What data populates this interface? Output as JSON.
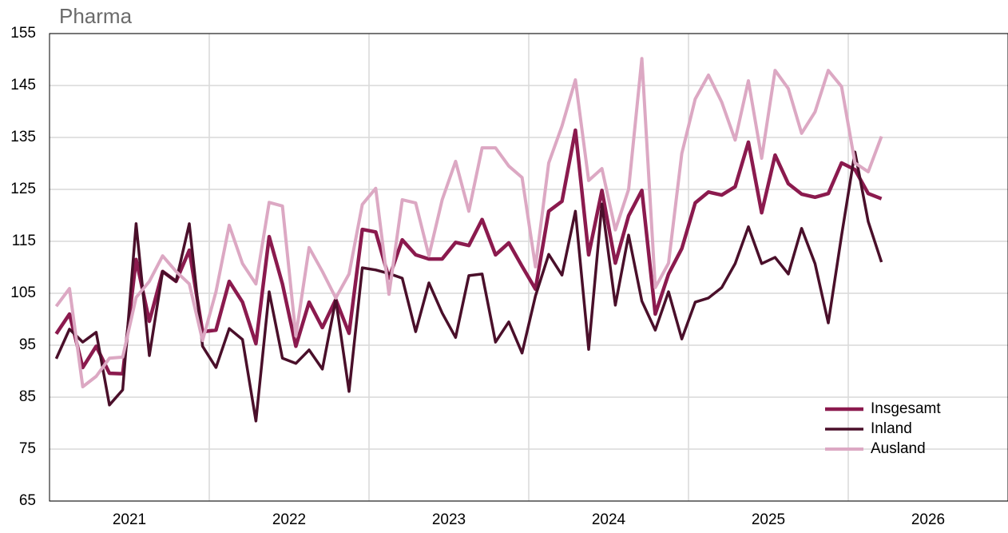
{
  "chart_data": {
    "type": "line",
    "title": "Pharma",
    "x": [
      2021.042,
      2021.125,
      2021.208,
      2021.292,
      2021.375,
      2021.458,
      2021.542,
      2021.625,
      2021.708,
      2021.792,
      2021.875,
      2021.958,
      2022.042,
      2022.125,
      2022.208,
      2022.292,
      2022.375,
      2022.458,
      2022.542,
      2022.625,
      2022.708,
      2022.792,
      2022.875,
      2022.958,
      2023.042,
      2023.125,
      2023.208,
      2023.292,
      2023.375,
      2023.458,
      2023.542,
      2023.625,
      2023.708,
      2023.792,
      2023.875,
      2023.958,
      2024.042,
      2024.125,
      2024.208,
      2024.292,
      2024.375,
      2024.458,
      2024.542,
      2024.625,
      2024.708,
      2024.792,
      2024.875,
      2024.958,
      2025.042,
      2025.125,
      2025.208,
      2025.292,
      2025.375,
      2025.458,
      2025.542,
      2025.625,
      2025.708,
      2025.792,
      2025.875,
      2025.958,
      2026.042,
      2026.125,
      2026.208
    ],
    "series": [
      {
        "name": "Insgesamt",
        "color": "#8b1a4e",
        "width": 4.5,
        "values": [
          97.2,
          101,
          90.7,
          94.8,
          89.6,
          89.5,
          111.5,
          99.6,
          109.2,
          107.3,
          113.3,
          97.6,
          97.9,
          107.3,
          103.3,
          95.3,
          115.9,
          106.8,
          94.8,
          103.3,
          98.4,
          103.8,
          97.3,
          117.3,
          116.8,
          107.9,
          115.3,
          112.4,
          111.6,
          111.6,
          114.8,
          114.2,
          119.2,
          112.4,
          114.7,
          110.2,
          105.8,
          120.8,
          122.7,
          136.4,
          112.4,
          124.8,
          110.8,
          119.9,
          124.8,
          101,
          108.7,
          113.6,
          122.4,
          124.5,
          123.9,
          125.5,
          134.1,
          120.5,
          131.6,
          126.1,
          124.1,
          123.5,
          124.2,
          130.1,
          128.8,
          124.2,
          123.2
        ]
      },
      {
        "name": "Inland",
        "color": "#4a0f2a",
        "width": 3.5,
        "values": [
          92.4,
          98.1,
          95.6,
          97.5,
          83.5,
          86.4,
          118.4,
          93,
          109.2,
          107.3,
          118.4,
          94.8,
          90.7,
          98.2,
          96.1,
          80.4,
          105.3,
          92.5,
          91.5,
          94.1,
          90.4,
          103.8,
          86.1,
          109.9,
          109.5,
          108.8,
          107.9,
          97.6,
          107,
          101.2,
          96.5,
          108.4,
          108.7,
          95.6,
          99.5,
          93.5,
          104.5,
          112.5,
          108.5,
          120.8,
          94.2,
          122.2,
          102.7,
          116.2,
          103.5,
          97.9,
          105.3,
          96.2,
          103.3,
          104.1,
          106.1,
          110.7,
          117.8,
          110.7,
          111.9,
          108.7,
          117.5,
          110.7,
          99.3,
          116.1,
          132.2,
          118.8,
          111
        ]
      },
      {
        "name": "Ausland",
        "color": "#dca8c3",
        "width": 4,
        "values": [
          102.5,
          105.9,
          87,
          89,
          92.5,
          92.7,
          104.2,
          107.3,
          112.2,
          109.2,
          106.8,
          95.9,
          105.3,
          118.1,
          110.7,
          106.8,
          122.5,
          121.8,
          96.8,
          113.8,
          109.2,
          104.1,
          108.7,
          122.1,
          125.2,
          104.8,
          123,
          122.4,
          112.2,
          123,
          130.4,
          120.8,
          133,
          133,
          129.5,
          127.3,
          110.1,
          130.1,
          137.2,
          146.1,
          126.7,
          129,
          117.2,
          125,
          150.2,
          106.1,
          110.8,
          131.9,
          142.4,
          147,
          141.8,
          134.5,
          145.9,
          131,
          147.9,
          144.4,
          135.8,
          139.9,
          147.9,
          144.8,
          130.1,
          128.4,
          135.2
        ]
      }
    ],
    "xlim": [
      2021,
      2027
    ],
    "xticks": [
      {
        "value": 2021.5,
        "label": "2021"
      },
      {
        "value": 2022.5,
        "label": "2022"
      },
      {
        "value": 2023.5,
        "label": "2023"
      },
      {
        "value": 2024.5,
        "label": "2024"
      },
      {
        "value": 2025.5,
        "label": "2025"
      },
      {
        "value": 2026.5,
        "label": "2026"
      }
    ],
    "x_gridlines": [
      2022,
      2023,
      2024,
      2025,
      2026
    ],
    "ylim": [
      65,
      155
    ],
    "yticks": [
      65,
      75,
      85,
      95,
      105,
      115,
      125,
      135,
      145,
      155
    ],
    "grid": true,
    "legend": "lower right"
  }
}
